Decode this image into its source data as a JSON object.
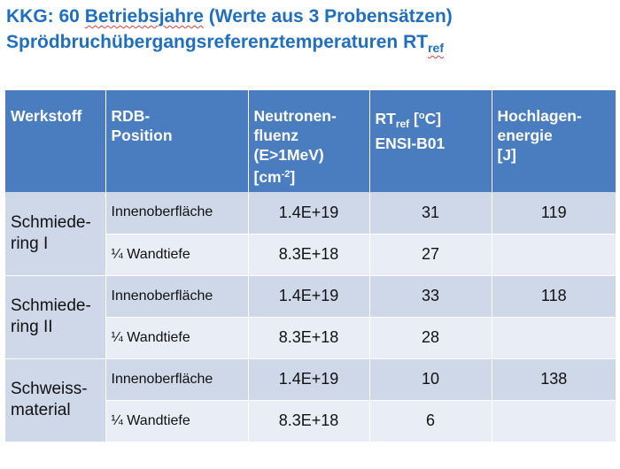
{
  "title": {
    "line1_prefix": "KKG: 60 ",
    "line1_underlined": "Betriebsjahre",
    "line1_suffix": " (Werte aus 3 Probensätzen)",
    "line2_main": "Sprödbruchübergangsreferenztemperaturen RT",
    "line2_sub": "ref"
  },
  "table": {
    "headers": {
      "werkstoff": "Werkstoff",
      "position_1": "RDB-",
      "position_2": "Position",
      "fluenz_1": "Neutronen-",
      "fluenz_2": "fluenz",
      "fluenz_3": "(E>1MeV)",
      "fluenz_4a": "[cm",
      "fluenz_4sup": "-2",
      "fluenz_4b": "]",
      "rt_1a": "RT",
      "rt_1sub": "ref",
      "rt_1b": " [",
      "rt_1sup": "o",
      "rt_1c": "C]",
      "rt_2": "ENSI-B01",
      "hoch_1": "Hochlagen-",
      "hoch_2": "energie",
      "hoch_3": "[J]"
    },
    "groups": [
      {
        "material_1": "Schmiede-",
        "material_2": "ring I",
        "rows": [
          {
            "position": "Innenoberfläche",
            "fluence": "1.4E+19",
            "rt": "31",
            "energy": "119"
          },
          {
            "position": "¼ Wandtiefe",
            "fluence": "8.3E+18",
            "rt": "27",
            "energy": ""
          }
        ]
      },
      {
        "material_1": "Schmiede-",
        "material_2": "ring II",
        "rows": [
          {
            "position": "Innenoberfläche",
            "fluence": "1.4E+19",
            "rt": "33",
            "energy": "118"
          },
          {
            "position": "¼ Wandtiefe",
            "fluence": "8.3E+18",
            "rt": "28",
            "energy": ""
          }
        ]
      },
      {
        "material_1": "Schweiss-",
        "material_2": "material",
        "rows": [
          {
            "position": "Innenoberfläche",
            "fluence": "1.4E+19",
            "rt": "10",
            "energy": "138"
          },
          {
            "position": "¼ Wandtiefe",
            "fluence": "8.3E+18",
            "rt": "6",
            "energy": ""
          }
        ]
      }
    ]
  }
}
